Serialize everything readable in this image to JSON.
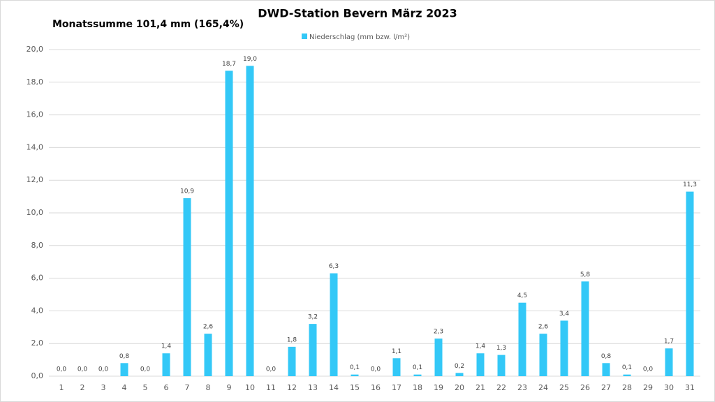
{
  "chart_data": {
    "type": "bar",
    "title": "DWD-Station  Bevern März 2023",
    "annotation": "Monatssumme 101,4 mm (165,4%)",
    "categories": [
      "1",
      "2",
      "3",
      "4",
      "5",
      "6",
      "7",
      "8",
      "9",
      "10",
      "11",
      "12",
      "13",
      "14",
      "15",
      "16",
      "17",
      "18",
      "19",
      "20",
      "21",
      "22",
      "23",
      "24",
      "25",
      "26",
      "27",
      "28",
      "29",
      "30",
      "31"
    ],
    "series": [
      {
        "name": "Niederschlag (mm bzw. l/m²)",
        "color": "#33c8f7",
        "values": [
          0,
          0,
          0,
          0.8,
          0,
          1.4,
          10.9,
          2.6,
          18.7,
          19.0,
          0,
          1.8,
          3.2,
          6.3,
          0.1,
          0,
          1.1,
          0.1,
          2.3,
          0.2,
          1.4,
          1.3,
          4.5,
          2.6,
          3.4,
          5.8,
          0.8,
          0.1,
          0,
          1.7,
          11.3
        ],
        "value_labels": [
          "0,0",
          "0,0",
          "0,0",
          "0,8",
          "0,0",
          "1,4",
          "10,9",
          "2,6",
          "18,7",
          "19,0",
          "0,0",
          "1,8",
          "3,2",
          "6,3",
          "0,1",
          "0,0",
          "1,1",
          "0,1",
          "2,3",
          "0,2",
          "1,4",
          "1,3",
          "4,5",
          "2,6",
          "3,4",
          "5,8",
          "0,8",
          "0,1",
          "0,0",
          "1,7",
          "11,3"
        ]
      }
    ],
    "ylim": [
      0,
      20
    ],
    "yticks": [
      {
        "value": 0,
        "label": "0,0"
      },
      {
        "value": 2,
        "label": "2,0"
      },
      {
        "value": 4,
        "label": "4,0"
      },
      {
        "value": 6,
        "label": "6,0"
      },
      {
        "value": 8,
        "label": "8,0"
      },
      {
        "value": 10,
        "label": "10,0"
      },
      {
        "value": 12,
        "label": "12,0"
      },
      {
        "value": 14,
        "label": "14,0"
      },
      {
        "value": 16,
        "label": "16,0"
      },
      {
        "value": 18,
        "label": "18,0"
      },
      {
        "value": 20,
        "label": "20,0"
      }
    ],
    "grid": true,
    "legend": "top"
  }
}
